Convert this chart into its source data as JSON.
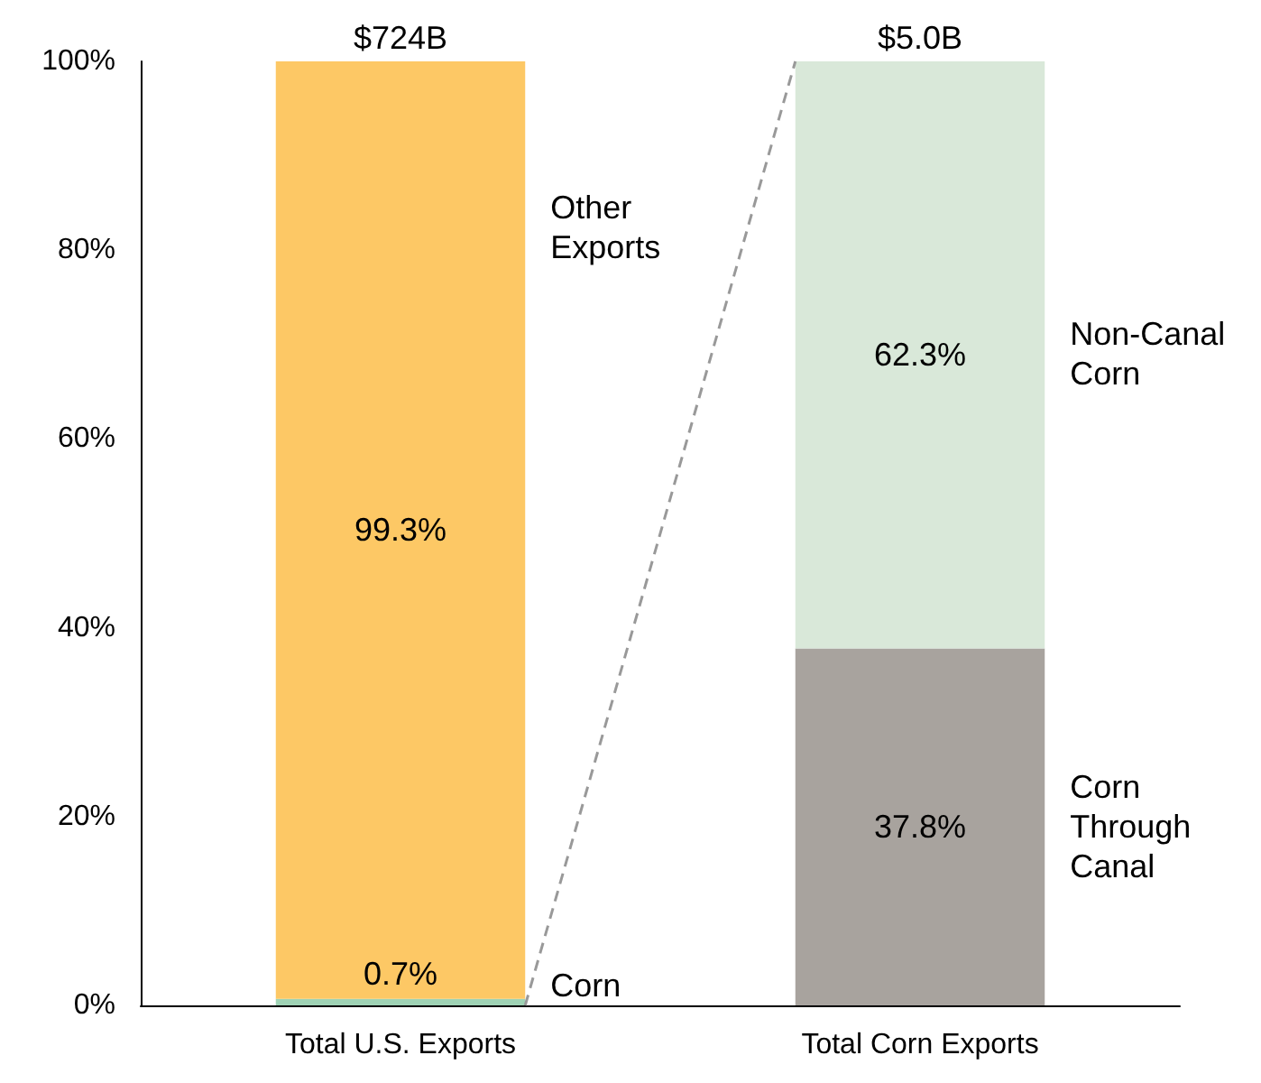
{
  "chart_data": {
    "type": "bar",
    "stacked": true,
    "categories": [
      "Total U.S. Exports",
      "Total Corn Exports"
    ],
    "series": [
      {
        "name": "Corn",
        "color": "#9fd3b5",
        "values": [
          0.7,
          null
        ],
        "value_labels": [
          "0.7%",
          null
        ]
      },
      {
        "name": "Other Exports",
        "color": "#fdc865",
        "values": [
          99.3,
          null
        ],
        "value_labels": [
          "99.3%",
          null
        ]
      },
      {
        "name": "Corn Through Canal",
        "color": "#a8a39e",
        "values": [
          null,
          37.8
        ],
        "value_labels": [
          null,
          "37.8%"
        ]
      },
      {
        "name": "Non-Canal Corn",
        "color": "#d9e8d9",
        "values": [
          null,
          62.3
        ],
        "value_labels": [
          null,
          "62.3%"
        ]
      }
    ],
    "annotations": [
      {
        "text": "$724B",
        "x": "Total U.S. Exports",
        "y": 100
      },
      {
        "text": "$5.0B",
        "x": "Total Corn Exports",
        "y": 100
      }
    ],
    "ylim": [
      0,
      100
    ],
    "yticks": [
      {
        "value": 0,
        "label": "0%"
      },
      {
        "value": 20,
        "label": "20%"
      },
      {
        "value": 40,
        "label": "40%"
      },
      {
        "value": 60,
        "label": "60%"
      },
      {
        "value": 80,
        "label": "80%"
      },
      {
        "value": 100,
        "label": "100%"
      }
    ],
    "grid": false,
    "legend": false
  }
}
